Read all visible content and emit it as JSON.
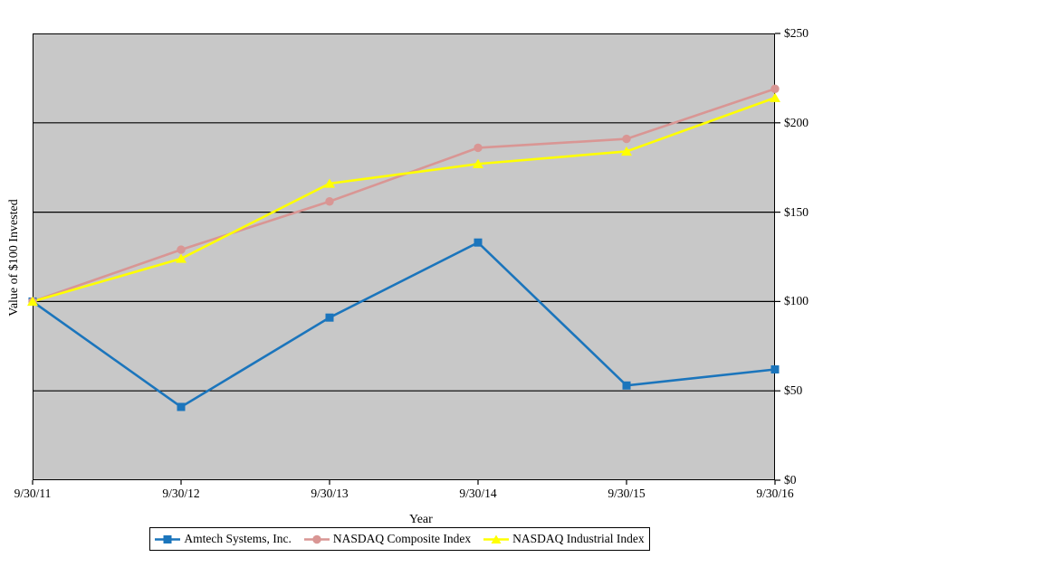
{
  "chart_data": {
    "type": "line",
    "title": "",
    "xlabel": "Year",
    "ylabel": "Value of $100 Invested",
    "categories": [
      "9/30/11",
      "9/30/12",
      "9/30/13",
      "9/30/14",
      "9/30/15",
      "9/30/16"
    ],
    "series": [
      {
        "name": "Amtech Systems, Inc.",
        "marker": "square",
        "color": "#1B75BC",
        "values": [
          100,
          41,
          91,
          133,
          53,
          62
        ]
      },
      {
        "name": "NASDAQ Composite Index",
        "marker": "circle",
        "color": "#D99694",
        "values": [
          100,
          129,
          156,
          186,
          191,
          219
        ]
      },
      {
        "name": "NASDAQ Industrial Index",
        "marker": "triangle",
        "color": "#FFFF00",
        "values": [
          100,
          124,
          166,
          177,
          184,
          214
        ]
      }
    ],
    "y_axis": {
      "min": 0,
      "max": 250,
      "step": 50,
      "tick_labels": [
        "$0",
        "$50",
        "$100",
        "$150",
        "$200",
        "$250"
      ],
      "side": "right"
    },
    "x_axis": {
      "tick_labels": [
        "9/30/11",
        "9/30/12",
        "9/30/13",
        "9/30/14",
        "9/30/15",
        "9/30/16"
      ]
    },
    "grid": true,
    "legend_position": "bottom",
    "colors": {
      "plot_background": "#C8C8C8",
      "gridline": "#000000",
      "axis": "#000000",
      "page_background": "#FFFFFF"
    }
  }
}
